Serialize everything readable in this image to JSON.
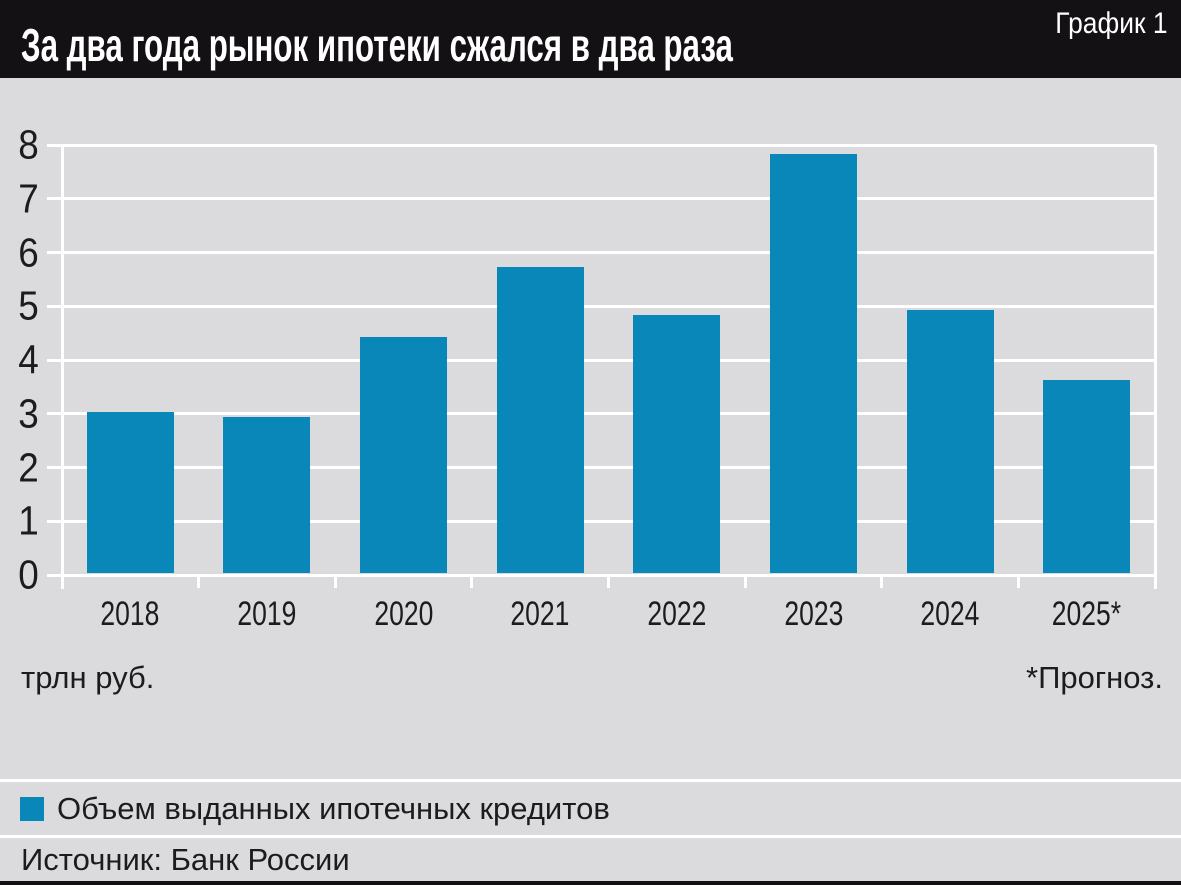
{
  "header": {
    "title": "За два года рынок ипотеки сжался в два раза",
    "corner_label": "График 1"
  },
  "chart_data": {
    "type": "bar",
    "categories": [
      "2018",
      "2019",
      "2020",
      "2021",
      "2022",
      "2023",
      "2024",
      "2025*"
    ],
    "values": [
      3.0,
      2.9,
      4.4,
      5.7,
      4.8,
      7.8,
      4.9,
      3.6
    ],
    "series": [
      {
        "name": "Объем выданных ипотечных кредитов",
        "values": [
          3.0,
          2.9,
          4.4,
          5.7,
          4.8,
          7.8,
          4.9,
          3.6
        ]
      }
    ],
    "title": "За два года рынок ипотеки сжался в два раза",
    "xlabel": "",
    "ylabel": "трлн руб.",
    "ylim": [
      0,
      8
    ],
    "ytick_step": 1,
    "grid": "horizontal white gridlines on gray background",
    "legend_position": "bottom",
    "bar_color": "#0887b8"
  },
  "notes": {
    "unit_label": "трлн руб.",
    "forecast_note": "*Прогноз."
  },
  "legend": {
    "swatch_color": "#0887b8",
    "label": "Объем выданных ипотечных кредитов"
  },
  "source": {
    "text": "Источник: Банк России"
  },
  "colors": {
    "background": "#dbdbde",
    "header_bg": "#141114",
    "header_text": "#ffffff",
    "bar": "#0887b8",
    "gridline": "#ffffff",
    "axis_text": "#1e1b1c"
  }
}
